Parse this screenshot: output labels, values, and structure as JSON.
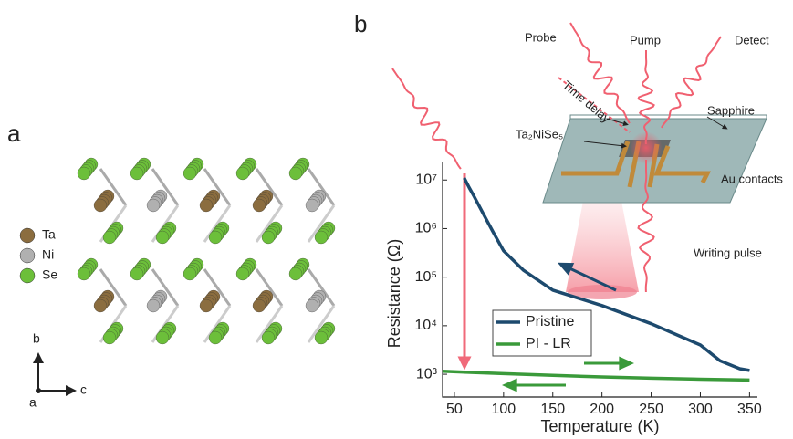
{
  "panel_a": {
    "label": "a",
    "legend": [
      "Ta",
      "Ni",
      "Se"
    ],
    "axes": [
      "b",
      "c",
      "a"
    ]
  },
  "panel_b": {
    "label": "b"
  },
  "schematic": {
    "probe": "Probe",
    "pump": "Pump",
    "detect": "Detect",
    "time_delay": "Time delay",
    "sapphire": "Sapphire",
    "sample": "Ta₂NiSe₅",
    "contacts": "Au contacts",
    "writing": "Writing pulse"
  },
  "chart_data": {
    "type": "line",
    "x_label": "Temperature (K)",
    "y_label": "Resistance (Ω)",
    "xlim": [
      38,
      358
    ],
    "xticks": [
      50,
      100,
      150,
      200,
      250,
      300,
      350
    ],
    "ylim": [
      340,
      23000000
    ],
    "log_y": true,
    "yticks": [
      {
        "value": 1000,
        "label": "10³"
      },
      {
        "value": 10000,
        "label": "10⁴"
      },
      {
        "value": 100000,
        "label": "10⁵"
      },
      {
        "value": 1000000,
        "label": "10⁶"
      },
      {
        "value": 10000000,
        "label": "10⁷"
      }
    ],
    "legend": "lower center",
    "series": [
      {
        "name": "Pristine",
        "color": "#1d4a6e",
        "x": [
          60,
          65,
          70,
          80,
          90,
          100,
          120,
          150,
          200,
          250,
          300,
          320,
          340,
          350
        ],
        "values": [
          11000000,
          7000000,
          4600000,
          1900000,
          800000,
          350000,
          140000,
          54000,
          26000,
          11000,
          4000,
          1900,
          1300,
          1200
        ]
      },
      {
        "name": "PI - LR",
        "color": "#3a9a3a",
        "x": [
          38,
          100,
          150,
          200,
          250,
          300,
          350
        ],
        "values": [
          1150,
          1030,
          950,
          880,
          830,
          790,
          760
        ]
      }
    ]
  }
}
